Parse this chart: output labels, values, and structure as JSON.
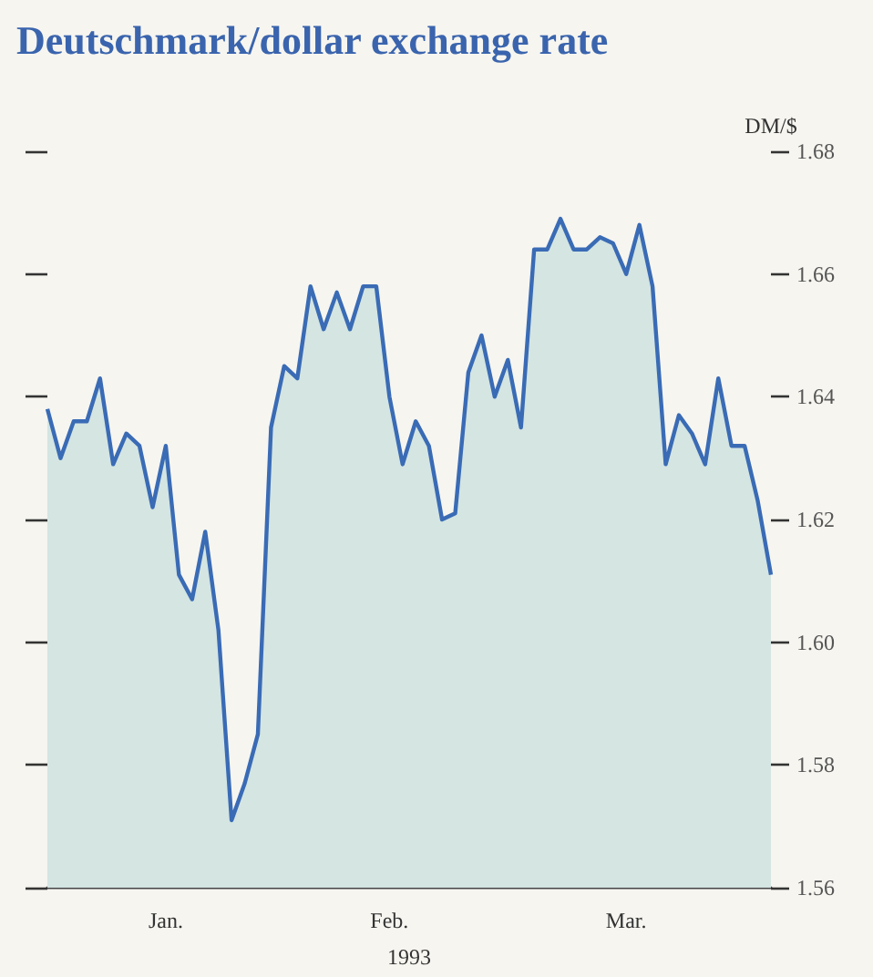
{
  "chart_data": {
    "type": "area",
    "title": "Deutschmark/dollar exchange rate",
    "xlabel": "1993",
    "ylabel": "DM/$",
    "categories": [
      null,
      null,
      null,
      null,
      null,
      null,
      null,
      null,
      null,
      "Jan.",
      null,
      null,
      null,
      null,
      null,
      null,
      null,
      null,
      null,
      null,
      null,
      null,
      null,
      null,
      null,
      null,
      "Feb.",
      null,
      null,
      null,
      null,
      null,
      null,
      null,
      null,
      null,
      null,
      null,
      null,
      null,
      null,
      null,
      null,
      null,
      "Mar.",
      null,
      null,
      null,
      null,
      null,
      null,
      null,
      null,
      null,
      null,
      null
    ],
    "ylim": [
      1.56,
      1.68
    ],
    "yticks": [
      1.56,
      1.58,
      {
        "value": 1.6,
        "label": "1.60"
      },
      1.62,
      1.64,
      1.66,
      1.68
    ],
    "grid": false,
    "marker": "none",
    "line_style": "solid",
    "series": [
      {
        "color": "#3a6bb5",
        "values": [
          1.638,
          1.63,
          1.636,
          1.636,
          1.643,
          1.629,
          1.634,
          1.632,
          1.622,
          1.632,
          1.611,
          1.607,
          1.618,
          1.602,
          1.571,
          1.577,
          1.585,
          1.635,
          1.645,
          1.643,
          1.658,
          1.651,
          1.657,
          1.651,
          1.658,
          1.658,
          1.64,
          1.629,
          1.636,
          1.632,
          1.62,
          1.621,
          1.644,
          1.65,
          1.64,
          1.646,
          1.635,
          1.664,
          1.664,
          1.669,
          1.664,
          1.664,
          1.666,
          1.665,
          1.66,
          1.668,
          1.658,
          1.629,
          1.637,
          1.634,
          1.629,
          1.643,
          1.632,
          1.632,
          1.623,
          1.611
        ]
      }
    ]
  }
}
